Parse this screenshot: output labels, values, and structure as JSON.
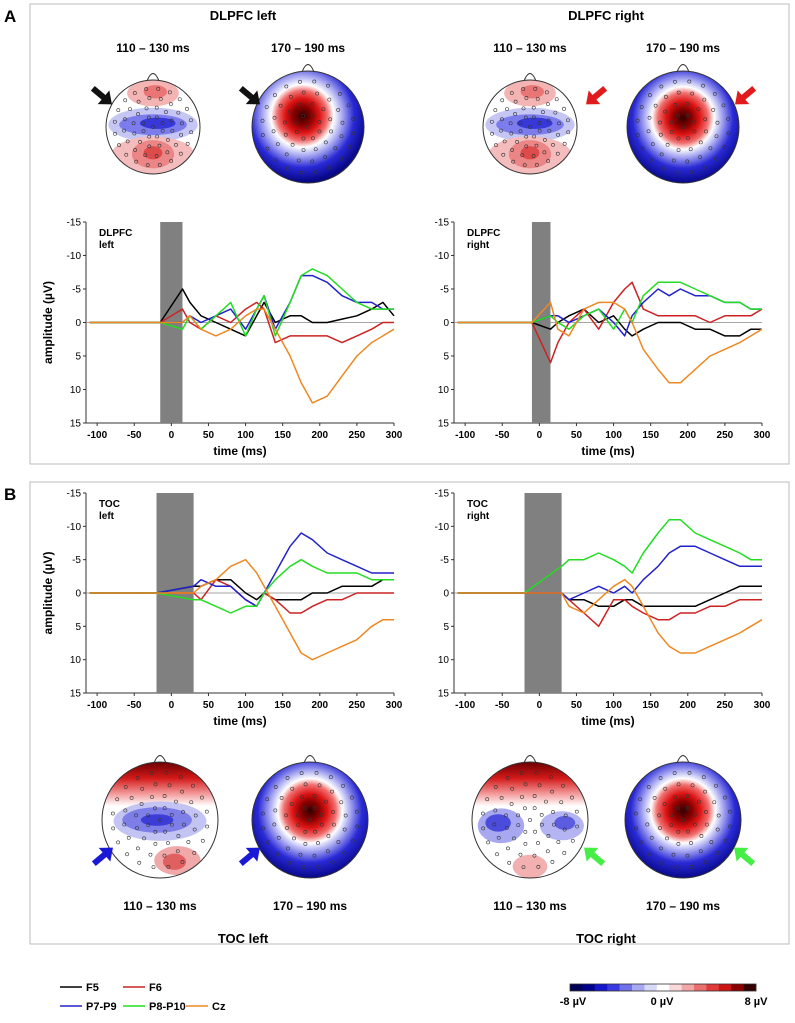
{
  "panel_letters": [
    "A",
    "B"
  ],
  "panelA": {
    "conditions": [
      "DLPFC left",
      "DLPFC right"
    ],
    "windows": [
      "110 – 130 ms",
      "170 – 190 ms"
    ]
  },
  "panelB": {
    "conditions": [
      "TOC  left",
      "TOC right"
    ],
    "windows": [
      "110 – 130 ms",
      "170 – 190 ms"
    ]
  },
  "arrow_colors": {
    "DLPFC left": "#111111",
    "DLPFC right": "#e11b1b",
    "TOC left": "#1a1ad6",
    "TOC right": "#44ee44"
  },
  "legend": {
    "entries": [
      {
        "label": "F5",
        "color": "#000000"
      },
      {
        "label": "F6",
        "color": "#cc2222"
      },
      {
        "label": "P7-P9",
        "color": "#2222cc"
      },
      {
        "label": "P8-P10",
        "color": "#22dd22"
      },
      {
        "label": "Cz",
        "color": "#ee8822"
      }
    ]
  },
  "colorbar": {
    "labels": [
      "-8 µV",
      "0 µV",
      "8 µV"
    ],
    "colors": [
      "#000055",
      "#00008b",
      "#1515cc",
      "#3a3ae0",
      "#6f6fea",
      "#a7a7f2",
      "#d8d8f8",
      "#ffffff",
      "#f8d8d8",
      "#f2a7a7",
      "#ea6f6f",
      "#e03a3a",
      "#cc1515",
      "#8b0000",
      "#330000"
    ]
  },
  "chart_data": [
    {
      "type": "line",
      "label": [
        "DLPFC",
        "left"
      ],
      "xlabel": "time (ms)",
      "ylabel": "amplitude (µV)",
      "xlim": [
        -115,
        300
      ],
      "ylim": [
        -15,
        15
      ],
      "y_inverted": true,
      "xticks": [
        -100,
        -50,
        0,
        50,
        100,
        150,
        200,
        250,
        300
      ],
      "yticks": [
        -15,
        -10,
        -5,
        0,
        5,
        10,
        15
      ],
      "artifact_window": [
        -15,
        15
      ],
      "x": [
        -110,
        -100,
        -80,
        -60,
        -40,
        -20,
        -15,
        15,
        25,
        40,
        60,
        80,
        100,
        115,
        125,
        140,
        160,
        175,
        190,
        210,
        230,
        250,
        270,
        285,
        300
      ],
      "series": [
        {
          "name": "F5",
          "color": "#000000",
          "y": [
            0,
            0,
            0,
            0,
            0,
            0,
            0,
            -5,
            -3,
            -1,
            0,
            1,
            2,
            -1,
            -3,
            0,
            -1,
            -1,
            0,
            0,
            -0.5,
            -1,
            -2,
            -3,
            -1
          ]
        },
        {
          "name": "F6",
          "color": "#cc2222",
          "y": [
            0,
            0,
            0,
            0,
            0,
            0,
            0,
            -2,
            0,
            1,
            -1,
            0,
            -2,
            -3,
            -2,
            3,
            2,
            2,
            2,
            2,
            3,
            2,
            1,
            0,
            0
          ]
        },
        {
          "name": "P7-P9",
          "color": "#2222cc",
          "y": [
            0,
            0,
            0,
            0,
            0,
            0,
            0,
            0,
            -1,
            0,
            -1,
            -2,
            1,
            -2,
            -4,
            1,
            -3,
            -7,
            -7,
            -6,
            -4,
            -3,
            -3,
            -2,
            -2
          ]
        },
        {
          "name": "P8-P10",
          "color": "#22dd22",
          "y": [
            0,
            0,
            0,
            0,
            0,
            0,
            0,
            1,
            -1,
            1,
            -1,
            -3,
            2,
            -2,
            -4,
            2,
            -3,
            -7,
            -8,
            -7,
            -5,
            -3,
            -2,
            -2,
            -2
          ]
        },
        {
          "name": "Cz",
          "color": "#ee8822",
          "y": [
            0,
            0,
            0,
            0,
            0,
            0,
            0,
            0,
            -1,
            1,
            2,
            1,
            -1,
            -2,
            -2,
            1,
            5,
            9,
            12,
            11,
            8,
            5,
            3,
            2,
            1
          ]
        }
      ]
    },
    {
      "type": "line",
      "label": [
        "DLPFC",
        "right"
      ],
      "xlabel": "time (ms)",
      "ylabel": "",
      "xlim": [
        -115,
        300
      ],
      "ylim": [
        -15,
        15
      ],
      "y_inverted": true,
      "xticks": [
        -100,
        -50,
        0,
        50,
        100,
        150,
        200,
        250,
        300
      ],
      "yticks": [
        -15,
        -10,
        -5,
        0,
        5,
        10,
        15
      ],
      "artifact_window": [
        -10,
        15
      ],
      "x": [
        -110,
        -100,
        -80,
        -60,
        -40,
        -20,
        -10,
        15,
        25,
        40,
        60,
        80,
        100,
        115,
        125,
        140,
        160,
        175,
        190,
        210,
        230,
        250,
        270,
        285,
        300
      ],
      "series": [
        {
          "name": "F5",
          "color": "#000000",
          "y": [
            0,
            0,
            0,
            0,
            0,
            0,
            0,
            1,
            0,
            -1,
            -2,
            0,
            -1,
            1,
            2,
            1,
            0,
            0,
            0,
            1,
            1,
            2,
            2,
            1,
            1
          ]
        },
        {
          "name": "F6",
          "color": "#cc2222",
          "y": [
            0,
            0,
            0,
            0,
            0,
            0,
            0,
            6,
            3,
            0,
            -2,
            1,
            -3,
            -5,
            -6,
            -2,
            -1,
            -1,
            -1,
            -1,
            0,
            -1,
            -1,
            -1,
            -2
          ]
        },
        {
          "name": "P7-P9",
          "color": "#2222cc",
          "y": [
            0,
            0,
            0,
            0,
            0,
            0,
            0,
            -1,
            -1,
            0,
            -1,
            -2,
            0,
            2,
            -1,
            -3,
            -5,
            -4,
            -5,
            -4,
            -4,
            -3,
            -3,
            -2,
            -2
          ]
        },
        {
          "name": "P8-P10",
          "color": "#22dd22",
          "y": [
            0,
            0,
            0,
            0,
            0,
            0,
            0,
            -1,
            0,
            1,
            -1,
            -2,
            1,
            -2,
            0,
            -4,
            -6,
            -6,
            -6,
            -5,
            -4,
            -3,
            -3,
            -2,
            -2
          ]
        },
        {
          "name": "Cz",
          "color": "#ee8822",
          "y": [
            0,
            0,
            0,
            0,
            0,
            0,
            0,
            -3,
            1,
            2,
            -2,
            -3,
            -3,
            -2,
            0,
            4,
            7,
            9,
            9,
            7,
            5,
            4,
            3,
            2,
            1
          ]
        }
      ]
    },
    {
      "type": "line",
      "label": [
        "TOC",
        "left"
      ],
      "xlabel": "time (ms)",
      "ylabel": "amplitude (µV)",
      "xlim": [
        -115,
        300
      ],
      "ylim": [
        -15,
        15
      ],
      "y_inverted": true,
      "xticks": [
        -100,
        -50,
        0,
        50,
        100,
        150,
        200,
        250,
        300
      ],
      "yticks": [
        -15,
        -10,
        -5,
        0,
        5,
        10,
        15
      ],
      "artifact_window": [
        -20,
        30
      ],
      "x": [
        -110,
        -100,
        -80,
        -60,
        -40,
        -20,
        30,
        40,
        60,
        80,
        100,
        115,
        125,
        140,
        160,
        175,
        190,
        210,
        230,
        250,
        270,
        285,
        300
      ],
      "series": [
        {
          "name": "F5",
          "color": "#000000",
          "y": [
            0,
            0,
            0,
            0,
            0,
            0,
            -1,
            -1,
            -2,
            -2,
            0,
            1,
            0,
            1,
            1,
            1,
            0,
            0,
            -1,
            -1,
            -1,
            -2,
            -2
          ]
        },
        {
          "name": "F6",
          "color": "#cc2222",
          "y": [
            0,
            0,
            0,
            0,
            0,
            0,
            0,
            1,
            -2,
            -1,
            1,
            2,
            0,
            1,
            3,
            3,
            2,
            1,
            1,
            0,
            0,
            0,
            0
          ]
        },
        {
          "name": "P7-P9",
          "color": "#2222cc",
          "y": [
            0,
            0,
            0,
            0,
            0,
            0,
            -1,
            -2,
            -1,
            -1,
            1,
            2,
            0,
            -3,
            -7,
            -9,
            -8,
            -6,
            -5,
            -4,
            -3,
            -3,
            -3
          ]
        },
        {
          "name": "P8-P10",
          "color": "#22dd22",
          "y": [
            0,
            0,
            0,
            0,
            0,
            0,
            1,
            1,
            2,
            3,
            2,
            2,
            0,
            -2,
            -4,
            -5,
            -4,
            -3,
            -3,
            -3,
            -2,
            -2,
            -2
          ]
        },
        {
          "name": "Cz",
          "color": "#ee8822",
          "y": [
            0,
            0,
            0,
            0,
            0,
            0,
            0,
            -1,
            -2,
            -4,
            -5,
            -3,
            -1,
            2,
            6,
            9,
            10,
            9,
            8,
            7,
            5,
            4,
            4
          ]
        }
      ]
    },
    {
      "type": "line",
      "label": [
        "TOC",
        "right"
      ],
      "xlabel": "time (ms)",
      "ylabel": "",
      "xlim": [
        -115,
        300
      ],
      "ylim": [
        -15,
        15
      ],
      "y_inverted": true,
      "xticks": [
        -100,
        -50,
        0,
        50,
        100,
        150,
        200,
        250,
        300
      ],
      "yticks": [
        -15,
        -10,
        -5,
        0,
        5,
        10,
        15
      ],
      "artifact_window": [
        -20,
        30
      ],
      "x": [
        -110,
        -100,
        -80,
        -60,
        -40,
        -20,
        30,
        40,
        60,
        80,
        100,
        115,
        125,
        140,
        160,
        175,
        190,
        210,
        230,
        250,
        270,
        285,
        300
      ],
      "series": [
        {
          "name": "F5",
          "color": "#000000",
          "y": [
            0,
            0,
            0,
            0,
            0,
            0,
            0,
            1,
            1,
            2,
            2,
            1,
            1,
            2,
            2,
            2,
            2,
            2,
            1,
            0,
            -1,
            -1,
            -1
          ]
        },
        {
          "name": "F6",
          "color": "#cc2222",
          "y": [
            0,
            0,
            0,
            0,
            0,
            0,
            0,
            1,
            3,
            5,
            1,
            1,
            2,
            3,
            4,
            4,
            3,
            3,
            2,
            2,
            1,
            1,
            1
          ]
        },
        {
          "name": "P7-P9",
          "color": "#2222cc",
          "y": [
            0,
            0,
            0,
            0,
            0,
            0,
            0,
            1,
            0,
            -1,
            0,
            -1,
            0,
            -2,
            -4,
            -6,
            -7,
            -7,
            -6,
            -5,
            -4,
            -4,
            -4
          ]
        },
        {
          "name": "P8-P10",
          "color": "#22dd22",
          "y": [
            0,
            0,
            0,
            0,
            0,
            0,
            -4,
            -5,
            -5,
            -6,
            -5,
            -4,
            -3,
            -6,
            -9,
            -11,
            -11,
            -9,
            -8,
            -7,
            -6,
            -5,
            -5
          ]
        },
        {
          "name": "Cz",
          "color": "#ee8822",
          "y": [
            0,
            0,
            0,
            0,
            0,
            0,
            0,
            2,
            3,
            1,
            -1,
            -2,
            -1,
            2,
            6,
            8,
            9,
            9,
            8,
            7,
            6,
            5,
            4
          ]
        }
      ]
    }
  ]
}
